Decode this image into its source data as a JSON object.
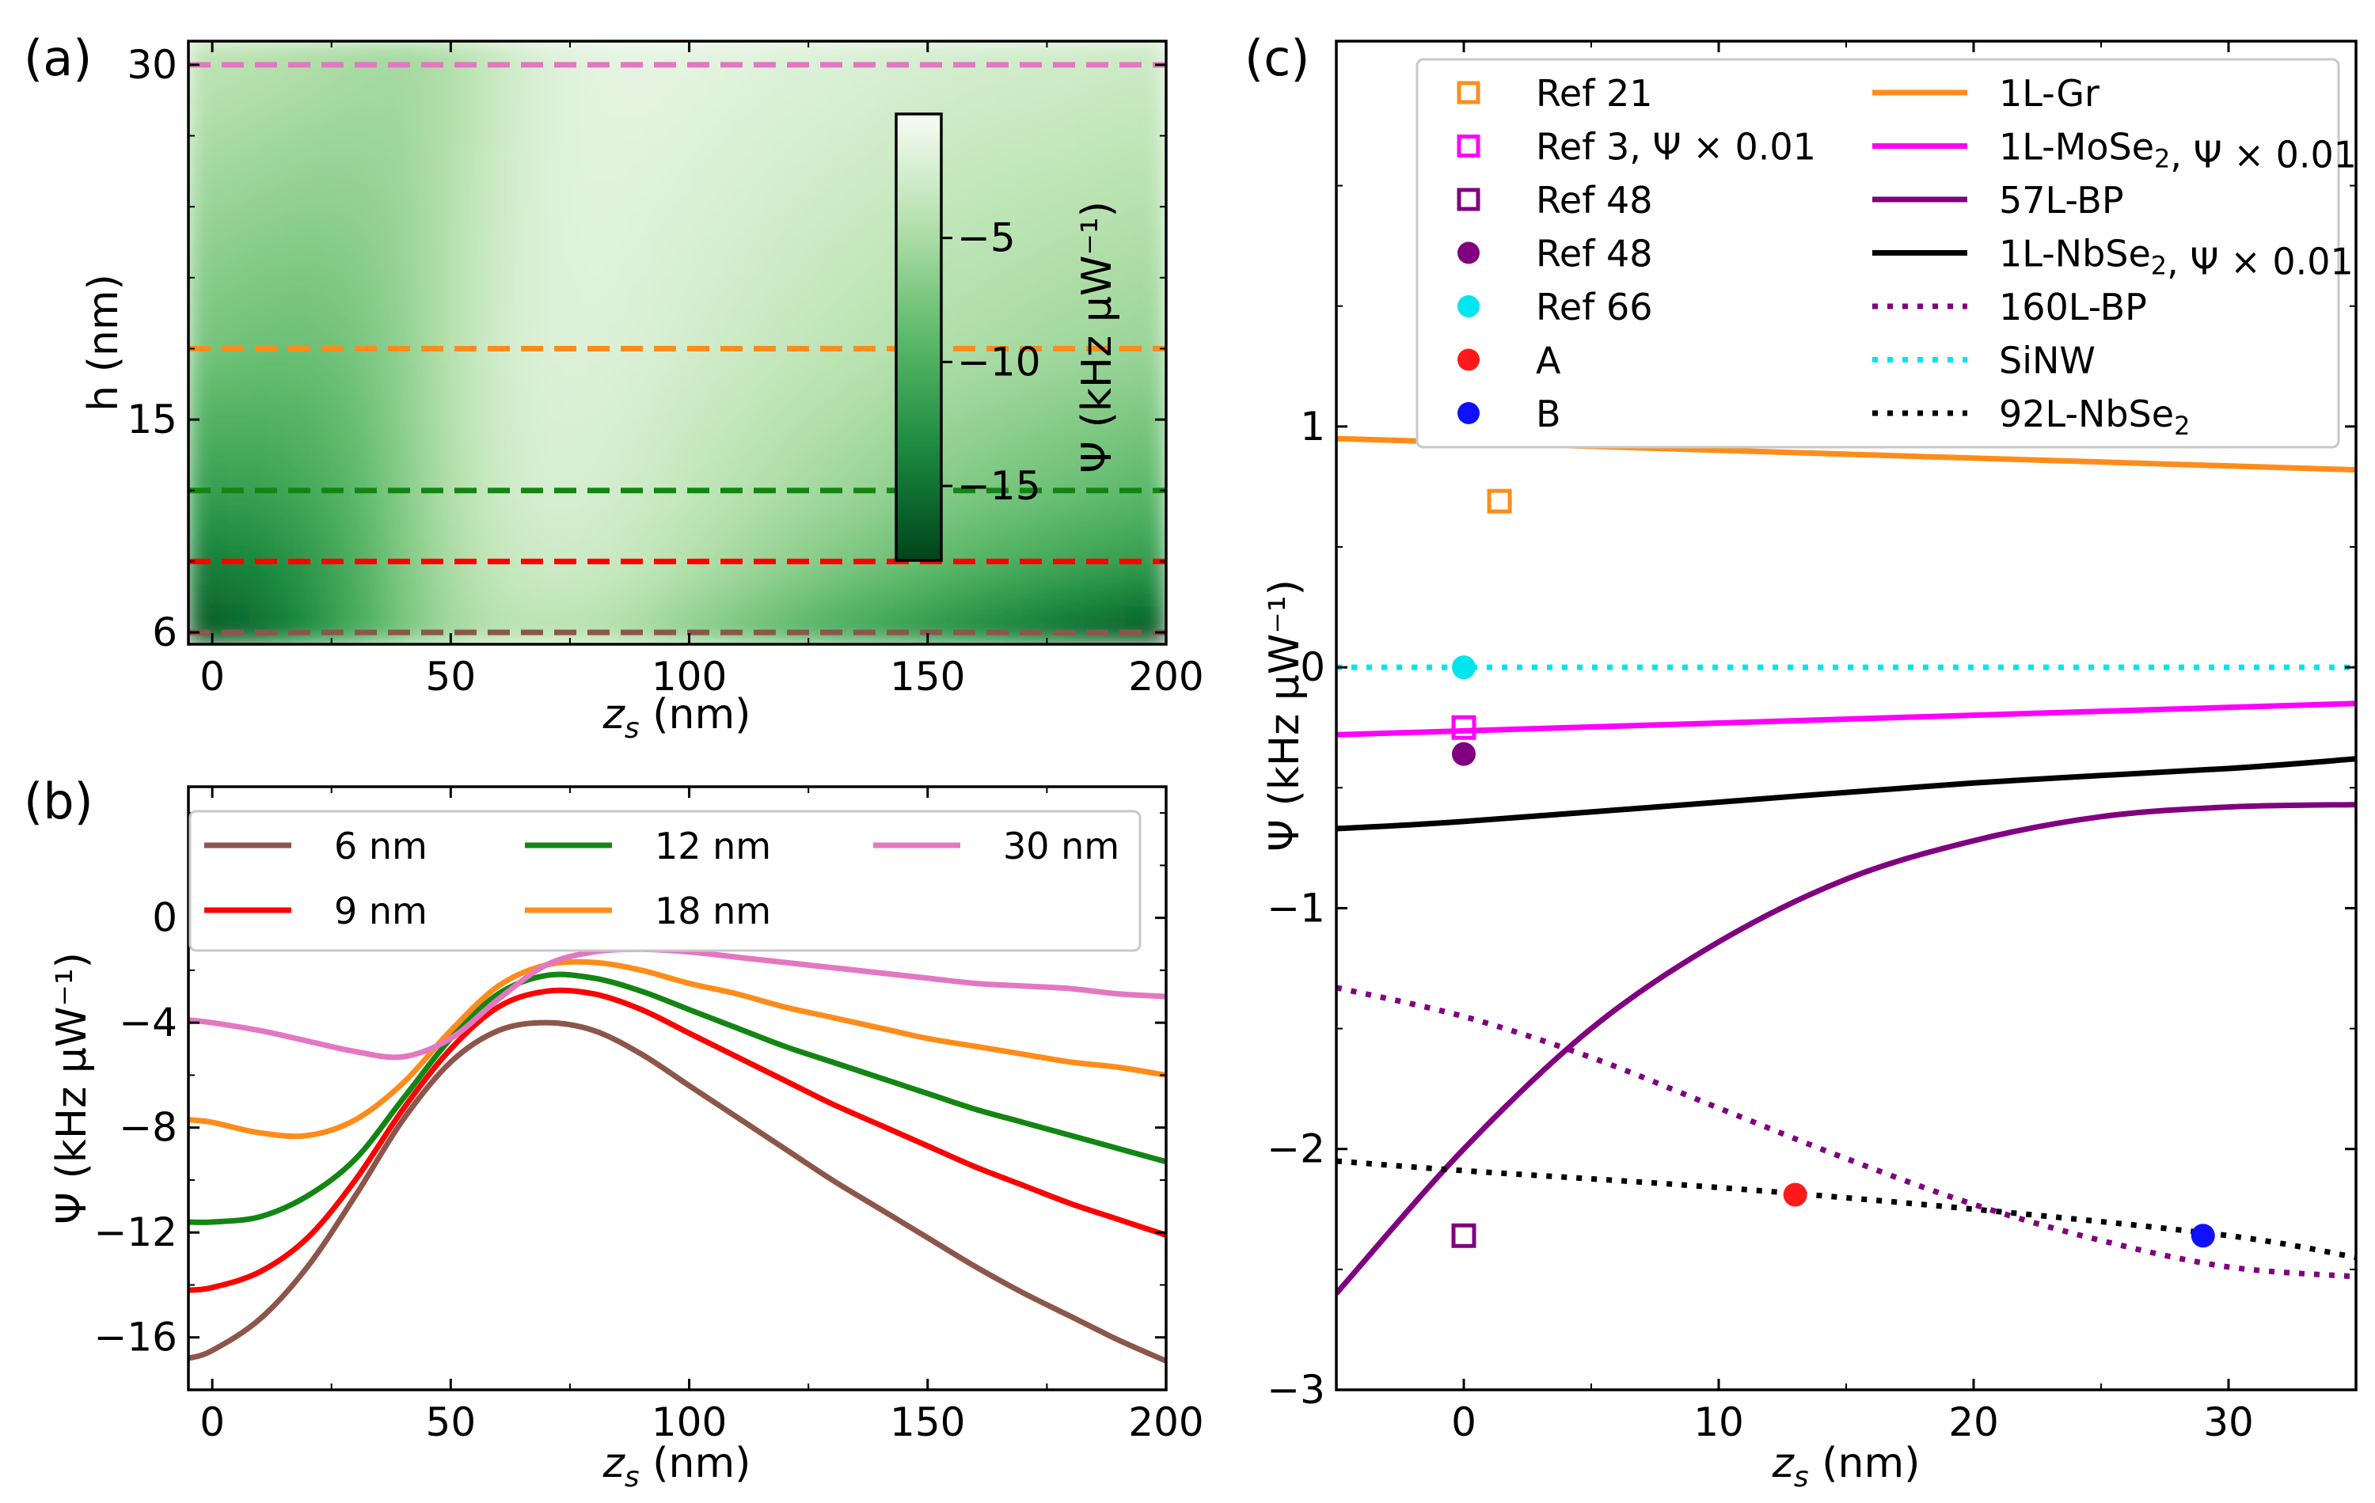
{
  "panels": {
    "a": "(a)",
    "b": "(b)",
    "c": "(c)"
  },
  "colors": {
    "6nm": "#8c564b",
    "9nm": "#ff0000",
    "12nm": "#138513",
    "18nm": "#ff8c1a",
    "30nm": "#e377c2",
    "gr": "#ff8c1a",
    "mose2": "#ff00ff",
    "bp": "#800080",
    "nbse2": "#000000",
    "sinw": "#00e5ee",
    "A": "#ff1a1a",
    "B": "#1010ff"
  },
  "chart_data": [
    {
      "id": "a",
      "type": "heatmap",
      "xlabel_main": "z",
      "xlabel_sub": "s",
      "xlabel_unit": " (nm)",
      "ylabel": "h (nm)",
      "xlim": [
        -5,
        200
      ],
      "ylim": [
        5.5,
        31
      ],
      "xticks": [
        0,
        50,
        100,
        150,
        200
      ],
      "yticks": [
        6,
        15,
        30
      ],
      "colorbar": {
        "label": "Ψ (kHz μW⁻¹)",
        "range": [
          -18,
          0
        ],
        "ticks": [
          -5,
          -10,
          -15
        ],
        "colormap": "Greens_r"
      },
      "hlines": [
        {
          "h": 30,
          "color": "#e377c2"
        },
        {
          "h": 18,
          "color": "#ff8c1a"
        },
        {
          "h": 12,
          "color": "#138513"
        },
        {
          "h": 9,
          "color": "#ff0000"
        },
        {
          "h": 6,
          "color": "#8c564b"
        }
      ]
    },
    {
      "id": "b",
      "type": "line",
      "xlabel_main": "z",
      "xlabel_sub": "s",
      "xlabel_unit": " (nm)",
      "ylabel": "Ψ (kHz μW⁻¹)",
      "xlim": [
        -5,
        200
      ],
      "ylim": [
        -18,
        5
      ],
      "xticks": [
        0,
        50,
        100,
        150,
        200
      ],
      "yticks": [
        0,
        -4,
        -8,
        -12,
        -16
      ],
      "series": [
        {
          "name": "6 nm",
          "color": "#8c564b",
          "x": [
            -5,
            0,
            10,
            20,
            30,
            40,
            50,
            60,
            70,
            80,
            90,
            100,
            110,
            120,
            130,
            140,
            150,
            160,
            170,
            180,
            190,
            200
          ],
          "y": [
            -16.8,
            -16.5,
            -15.3,
            -13.3,
            -10.6,
            -7.7,
            -5.5,
            -4.3,
            -4.0,
            -4.3,
            -5.2,
            -6.4,
            -7.6,
            -8.8,
            -10.0,
            -11.1,
            -12.2,
            -13.3,
            -14.3,
            -15.2,
            -16.1,
            -16.9
          ]
        },
        {
          "name": "9 nm",
          "color": "#ff0000",
          "x": [
            -5,
            0,
            10,
            20,
            30,
            40,
            50,
            60,
            70,
            80,
            90,
            100,
            110,
            120,
            130,
            140,
            150,
            160,
            170,
            180,
            190,
            200
          ],
          "y": [
            -14.2,
            -14.1,
            -13.5,
            -12.2,
            -10.0,
            -7.3,
            -5.0,
            -3.4,
            -2.8,
            -2.9,
            -3.5,
            -4.4,
            -5.3,
            -6.2,
            -7.1,
            -7.9,
            -8.7,
            -9.5,
            -10.2,
            -10.9,
            -11.5,
            -12.1
          ]
        },
        {
          "name": "12 nm",
          "color": "#138513",
          "x": [
            -5,
            0,
            10,
            20,
            30,
            40,
            50,
            60,
            70,
            80,
            90,
            100,
            110,
            120,
            130,
            140,
            150,
            160,
            170,
            180,
            190,
            200
          ],
          "y": [
            -11.6,
            -11.6,
            -11.4,
            -10.6,
            -9.2,
            -6.9,
            -4.6,
            -2.9,
            -2.2,
            -2.3,
            -2.8,
            -3.5,
            -4.2,
            -4.9,
            -5.5,
            -6.1,
            -6.7,
            -7.3,
            -7.8,
            -8.3,
            -8.8,
            -9.3
          ]
        },
        {
          "name": "18 nm",
          "color": "#ff8c1a",
          "x": [
            -5,
            0,
            10,
            20,
            30,
            40,
            50,
            60,
            70,
            80,
            90,
            100,
            110,
            120,
            130,
            140,
            150,
            160,
            170,
            180,
            190,
            200
          ],
          "y": [
            -7.7,
            -7.8,
            -8.2,
            -8.3,
            -7.7,
            -6.3,
            -4.3,
            -2.6,
            -1.8,
            -1.7,
            -2.0,
            -2.5,
            -2.9,
            -3.4,
            -3.8,
            -4.2,
            -4.6,
            -4.9,
            -5.2,
            -5.5,
            -5.7,
            -6.0
          ]
        },
        {
          "name": "30 nm",
          "color": "#e377c2",
          "x": [
            -5,
            0,
            10,
            20,
            30,
            40,
            50,
            60,
            70,
            80,
            90,
            100,
            110,
            120,
            130,
            140,
            150,
            160,
            170,
            180,
            190,
            200
          ],
          "y": [
            -3.9,
            -4.0,
            -4.3,
            -4.7,
            -5.1,
            -5.3,
            -4.6,
            -3.1,
            -1.8,
            -1.3,
            -1.2,
            -1.3,
            -1.5,
            -1.7,
            -1.9,
            -2.1,
            -2.3,
            -2.5,
            -2.6,
            -2.7,
            -2.9,
            -3.0
          ]
        }
      ]
    },
    {
      "id": "c",
      "type": "line",
      "xlabel_main": "z",
      "xlabel_sub": "s",
      "xlabel_unit": " (nm)",
      "ylabel": "Ψ (kHz μW⁻¹)",
      "xlim": [
        -5,
        35
      ],
      "ylim": [
        -3,
        2.6
      ],
      "xticks": [
        0,
        10,
        20,
        30
      ],
      "yticks": [
        1,
        0,
        -1,
        -2,
        -3
      ],
      "series": [
        {
          "name": "1L-Gr",
          "style": "solid",
          "color": "#ff8c1a",
          "x": [
            -5,
            35
          ],
          "y": [
            0.95,
            0.82
          ]
        },
        {
          "name": "1L-MoSe2, Ψ × 0.01",
          "style": "solid",
          "color": "#ff00ff",
          "x": [
            -5,
            35
          ],
          "y": [
            -0.28,
            -0.15
          ]
        },
        {
          "name": "57L-BP",
          "style": "solid",
          "color": "#800080",
          "x": [
            -5,
            0,
            5,
            10,
            15,
            20,
            25,
            30,
            35
          ],
          "y": [
            -2.6,
            -2.0,
            -1.5,
            -1.14,
            -0.88,
            -0.72,
            -0.62,
            -0.58,
            -0.57
          ]
        },
        {
          "name": "1L-NbSe2, Ψ × 0.01",
          "style": "solid",
          "color": "#000000",
          "x": [
            -5,
            0,
            10,
            20,
            30,
            35
          ],
          "y": [
            -0.67,
            -0.64,
            -0.56,
            -0.48,
            -0.42,
            -0.38
          ]
        },
        {
          "name": "160L-BP",
          "style": "dotted",
          "color": "#800080",
          "x": [
            -5,
            0,
            5,
            10,
            15,
            20,
            25,
            30,
            35
          ],
          "y": [
            -1.33,
            -1.45,
            -1.62,
            -1.83,
            -2.04,
            -2.23,
            -2.38,
            -2.49,
            -2.53
          ]
        },
        {
          "name": "SiNW",
          "style": "dotted",
          "color": "#00e5ee",
          "x": [
            -5,
            35
          ],
          "y": [
            0.0,
            0.0
          ]
        },
        {
          "name": "92L-NbSe2",
          "style": "dotted",
          "color": "#000000",
          "x": [
            -5,
            0,
            10,
            20,
            30,
            35
          ],
          "y": [
            -2.05,
            -2.09,
            -2.16,
            -2.25,
            -2.36,
            -2.45
          ]
        }
      ],
      "points": [
        {
          "name": "Ref 21",
          "marker": "square",
          "color": "#ff8c1a",
          "x": 1.4,
          "y": 0.69
        },
        {
          "name": "Ref 3, Ψ × 0.01",
          "marker": "square",
          "color": "#ff00ff",
          "x": 0,
          "y": -0.25
        },
        {
          "name": "Ref 48",
          "marker": "square",
          "color": "#800080",
          "x": 0,
          "y": -2.36
        },
        {
          "name": "Ref 48",
          "marker": "circle",
          "color": "#800080",
          "x": 0,
          "y": -0.36
        },
        {
          "name": "Ref 66",
          "marker": "circle",
          "color": "#00e5ee",
          "x": 0,
          "y": 0.0
        },
        {
          "name": "A",
          "marker": "circle",
          "color": "#ff1a1a",
          "x": 13,
          "y": -2.19
        },
        {
          "name": "B",
          "marker": "circle",
          "color": "#1010ff",
          "x": 29,
          "y": -2.36
        }
      ]
    }
  ]
}
